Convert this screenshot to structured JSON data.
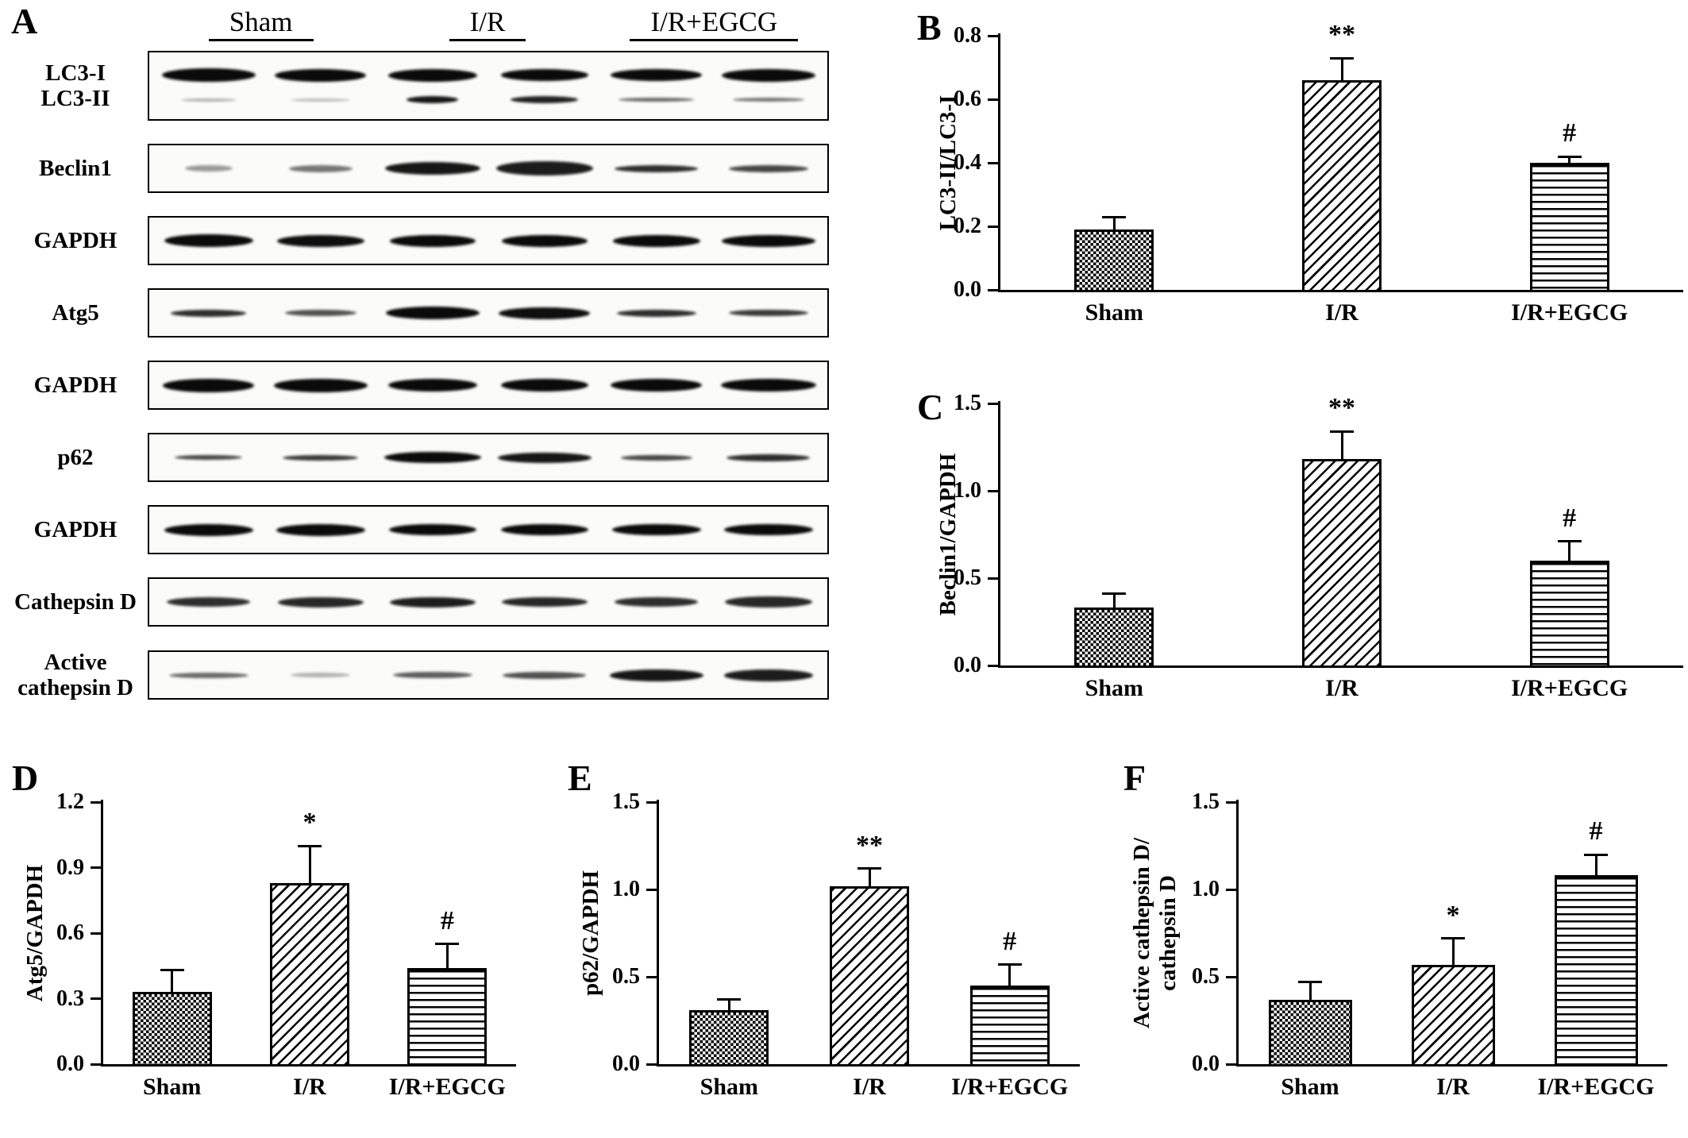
{
  "colors": {
    "ink": "#000000",
    "paper": "#ffffff"
  },
  "figure": {
    "panelA": {
      "label": "A",
      "group_headers": [
        "Sham",
        "I/R",
        "I/R+EGCG"
      ],
      "rows": [
        {
          "labels": [
            "LC3-I",
            "LC3-II"
          ],
          "band_rows": [
            [
              [
                118,
                17,
                1
              ],
              [
                115,
                16,
                1
              ],
              [
                112,
                16,
                1
              ],
              [
                110,
                15,
                1
              ],
              [
                115,
                15,
                1
              ],
              [
                118,
                16,
                1
              ]
            ],
            [
              [
                70,
                4,
                0.3
              ],
              [
                75,
                4,
                0.25
              ],
              [
                65,
                9,
                0.95
              ],
              [
                85,
                9,
                0.9
              ],
              [
                95,
                5,
                0.6
              ],
              [
                90,
                5,
                0.55
              ]
            ]
          ]
        },
        {
          "labels": [
            "Beclin1"
          ],
          "band_rows": [
            [
              [
                60,
                8,
                0.4
              ],
              [
                80,
                9,
                0.55
              ],
              [
                120,
                16,
                0.95
              ],
              [
                122,
                18,
                0.92
              ],
              [
                105,
                9,
                0.85
              ],
              [
                100,
                9,
                0.75
              ]
            ]
          ]
        },
        {
          "labels": [
            "GAPDH"
          ],
          "band_rows": [
            [
              [
                112,
                16,
                1
              ],
              [
                110,
                15,
                0.98
              ],
              [
                108,
                15,
                1
              ],
              [
                108,
                15,
                1
              ],
              [
                110,
                15,
                1
              ],
              [
                118,
                15,
                1
              ]
            ]
          ]
        },
        {
          "labels": [
            "Atg5"
          ],
          "band_rows": [
            [
              [
                95,
                9,
                0.85
              ],
              [
                90,
                8,
                0.7
              ],
              [
                118,
                16,
                1
              ],
              [
                115,
                15,
                0.98
              ],
              [
                100,
                9,
                0.85
              ],
              [
                100,
                8,
                0.8
              ]
            ]
          ]
        },
        {
          "labels": [
            "GAPDH"
          ],
          "band_rows": [
            [
              [
                115,
                17,
                1
              ],
              [
                118,
                17,
                1
              ],
              [
                112,
                16,
                1
              ],
              [
                110,
                16,
                1
              ],
              [
                115,
                16,
                1
              ],
              [
                120,
                16,
                1
              ]
            ]
          ]
        },
        {
          "labels": [
            "p62"
          ],
          "band_rows": [
            [
              [
                85,
                6,
                0.75
              ],
              [
                95,
                7,
                0.8
              ],
              [
                122,
                14,
                1
              ],
              [
                118,
                13,
                0.95
              ],
              [
                90,
                7,
                0.75
              ],
              [
                105,
                9,
                0.85
              ]
            ]
          ]
        },
        {
          "labels": [
            "GAPDH"
          ],
          "band_rows": [
            [
              [
                112,
                15,
                1
              ],
              [
                112,
                15,
                1
              ],
              [
                110,
                14,
                1
              ],
              [
                110,
                14,
                1
              ],
              [
                112,
                14,
                1
              ],
              [
                112,
                14,
                1
              ]
            ]
          ]
        },
        {
          "labels": [
            "Cathepsin D"
          ],
          "band_rows": [
            [
              [
                105,
                12,
                0.85
              ],
              [
                108,
                13,
                0.88
              ],
              [
                108,
                13,
                0.92
              ],
              [
                108,
                12,
                0.88
              ],
              [
                105,
                12,
                0.85
              ],
              [
                110,
                14,
                0.88
              ]
            ]
          ]
        },
        {
          "labels": [
            "Active",
            "cathepsin D"
          ],
          "band_rows": [
            [
              [
                100,
                7,
                0.6
              ],
              [
                75,
                6,
                0.3
              ],
              [
                100,
                8,
                0.65
              ],
              [
                105,
                9,
                0.7
              ],
              [
                118,
                15,
                0.95
              ],
              [
                112,
                15,
                0.92
              ]
            ]
          ]
        }
      ]
    }
  },
  "chart_data": [
    {
      "panel": "B",
      "type": "bar",
      "title": "",
      "ylabel": "LC3-II/LC3-I",
      "categories": [
        "Sham",
        "I/R",
        "I/R+EGCG"
      ],
      "values": [
        0.19,
        0.66,
        0.4
      ],
      "errors": [
        0.04,
        0.07,
        0.02
      ],
      "significance": [
        "",
        "**",
        "#"
      ],
      "ylim": [
        0,
        0.8
      ],
      "yticks": [
        0,
        0.2,
        0.4,
        0.6,
        0.8
      ],
      "ytick_labels": [
        "0.0",
        "0.2",
        "0.4",
        "0.6",
        "0.8"
      ],
      "bar_patterns": [
        "checkerboard",
        "diagonal-stripes",
        "horizontal-stripes"
      ],
      "grid": false,
      "legend": "none"
    },
    {
      "panel": "C",
      "type": "bar",
      "title": "",
      "ylabel": "Beclin1/GAPDH",
      "categories": [
        "Sham",
        "I/R",
        "I/R+EGCG"
      ],
      "values": [
        0.33,
        1.18,
        0.6
      ],
      "errors": [
        0.08,
        0.16,
        0.11
      ],
      "significance": [
        "",
        "**",
        "#"
      ],
      "ylim": [
        0,
        1.5
      ],
      "yticks": [
        0,
        0.5,
        1.0,
        1.5
      ],
      "ytick_labels": [
        "0.0",
        "0.5",
        "1.0",
        "1.5"
      ],
      "bar_patterns": [
        "checkerboard",
        "diagonal-stripes",
        "horizontal-stripes"
      ],
      "grid": false,
      "legend": "none"
    },
    {
      "panel": "D",
      "type": "bar",
      "title": "",
      "ylabel": "Atg5/GAPDH",
      "categories": [
        "Sham",
        "I/R",
        "I/R+EGCG"
      ],
      "values": [
        0.33,
        0.83,
        0.44
      ],
      "errors": [
        0.1,
        0.17,
        0.11
      ],
      "significance": [
        "",
        "*",
        "#"
      ],
      "ylim": [
        0,
        1.2
      ],
      "yticks": [
        0,
        0.3,
        0.6,
        0.9,
        1.2
      ],
      "ytick_labels": [
        "0.0",
        "0.3",
        "0.6",
        "0.9",
        "1.2"
      ],
      "bar_patterns": [
        "checkerboard",
        "diagonal-stripes",
        "horizontal-stripes"
      ],
      "grid": false,
      "legend": "none"
    },
    {
      "panel": "E",
      "type": "bar",
      "title": "",
      "ylabel": "p62/GAPDH",
      "categories": [
        "Sham",
        "I/R",
        "I/R+EGCG"
      ],
      "values": [
        0.31,
        1.02,
        0.45
      ],
      "errors": [
        0.06,
        0.1,
        0.12
      ],
      "significance": [
        "",
        "**",
        "#"
      ],
      "ylim": [
        0,
        1.5
      ],
      "yticks": [
        0,
        0.5,
        1.0,
        1.5
      ],
      "ytick_labels": [
        "0.0",
        "0.5",
        "1.0",
        "1.5"
      ],
      "bar_patterns": [
        "checkerboard",
        "diagonal-stripes",
        "horizontal-stripes"
      ],
      "grid": false,
      "legend": "none"
    },
    {
      "panel": "F",
      "type": "bar",
      "title": "",
      "ylabel": "Active cathepsin D/\ncathepsin D",
      "categories": [
        "Sham",
        "I/R",
        "I/R+EGCG"
      ],
      "values": [
        0.37,
        0.57,
        1.08
      ],
      "errors": [
        0.1,
        0.15,
        0.12
      ],
      "significance": [
        "",
        "*",
        "#"
      ],
      "ylim": [
        0,
        1.5
      ],
      "yticks": [
        0,
        0.5,
        1.0,
        1.5
      ],
      "ytick_labels": [
        "0.0",
        "0.5",
        "1.0",
        "1.5"
      ],
      "bar_patterns": [
        "checkerboard",
        "diagonal-stripes",
        "horizontal-stripes"
      ],
      "grid": false,
      "legend": "none"
    }
  ]
}
